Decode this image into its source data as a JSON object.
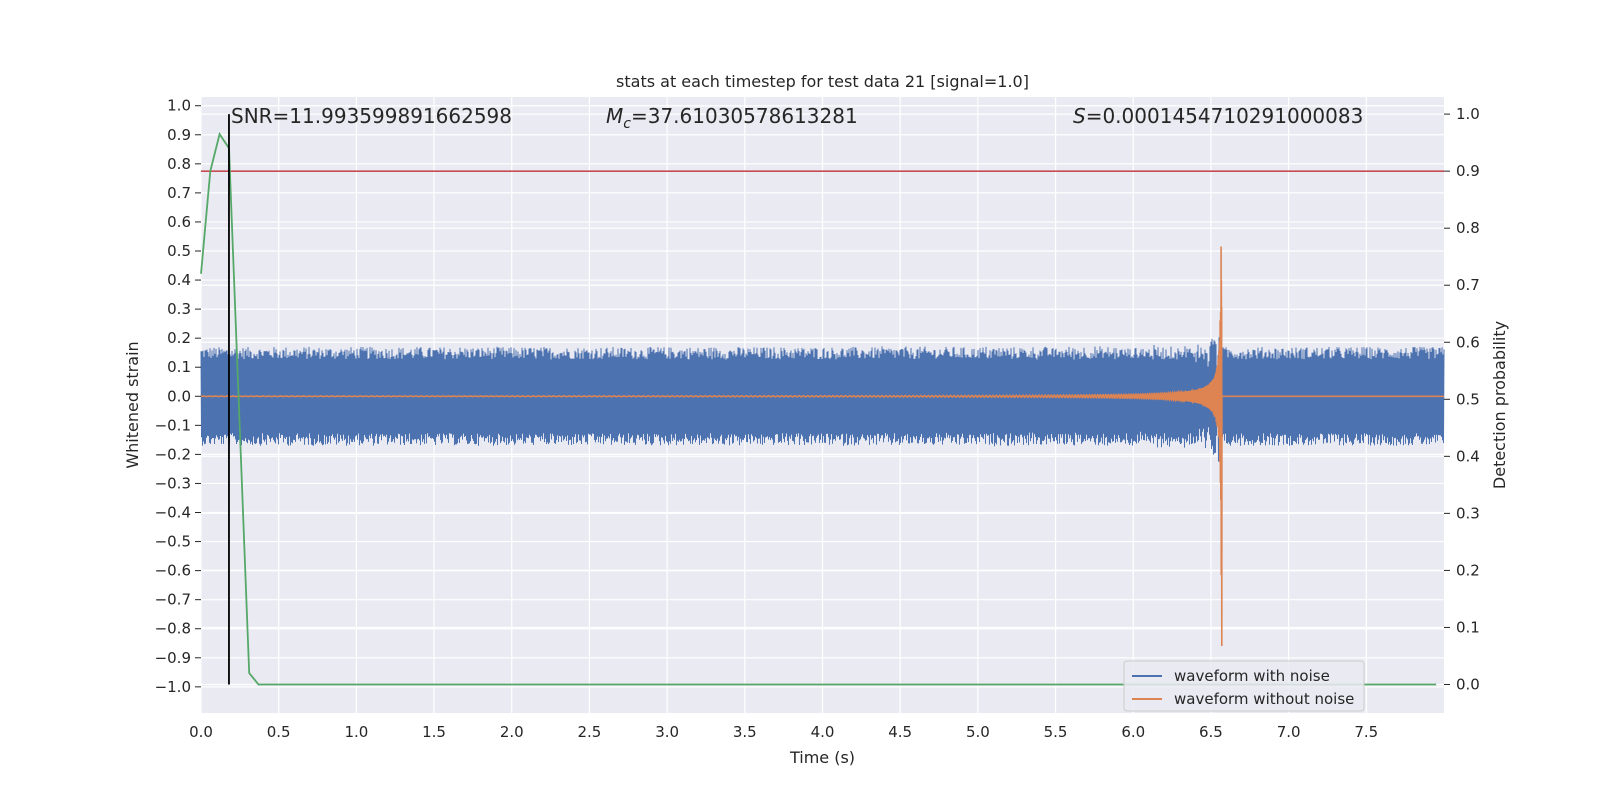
{
  "chart_data": {
    "type": "line",
    "title": "stats at each timestep for test data 21 [signal=1.0]",
    "xlabel": "Time (s)",
    "ylabel_left": "Whitened strain",
    "ylabel_right": "Detection probability",
    "xlim": [
      0.0,
      8.0
    ],
    "ylim_left": [
      -1.09,
      1.03
    ],
    "ylim_right": [
      -0.05,
      1.03
    ],
    "xticks": [
      "0.0",
      "0.5",
      "1.0",
      "1.5",
      "2.0",
      "2.5",
      "3.0",
      "3.5",
      "4.0",
      "4.5",
      "5.0",
      "5.5",
      "6.0",
      "6.5",
      "7.0",
      "7.5"
    ],
    "yticks_left": [
      "1.0",
      "0.9",
      "0.8",
      "0.7",
      "0.6",
      "0.5",
      "0.4",
      "0.3",
      "0.2",
      "0.1",
      "0.0",
      "-0.1",
      "-0.2",
      "-0.3",
      "-0.4",
      "-0.5",
      "-0.6",
      "-0.7",
      "-0.8",
      "-0.9",
      "-1.0"
    ],
    "yticks_right": [
      "1.0",
      "0.9",
      "0.8",
      "0.7",
      "0.6",
      "0.5",
      "0.4",
      "0.3",
      "0.2",
      "0.1",
      "0.0"
    ],
    "grid": true,
    "legend_position": "lower-right",
    "annotations": {
      "snr": "SNR=11.993599891662598",
      "mc": "=37.61030578613281",
      "mc_symbol": "M",
      "mc_sub": "c",
      "s": "=0.0001454710291000083",
      "s_symbol": "S"
    },
    "series": [
      {
        "name": "waveform with noise",
        "color": "#4c72b0",
        "noise_amplitude": 0.17,
        "merger_time": 6.57
      },
      {
        "name": "waveform without noise",
        "color": "#dd8452",
        "merger_time": 6.57,
        "peak_amplitude": 0.93
      },
      {
        "color": "#55a868",
        "axis": "right",
        "x": [
          0.0,
          0.06,
          0.12,
          0.18,
          0.31,
          0.37,
          7.95
        ],
        "y": [
          0.72,
          0.9,
          0.965,
          0.94,
          0.02,
          0.0,
          0.0
        ]
      }
    ],
    "threshold_right": 0.9,
    "threshold_color": "#c44e52",
    "detection_time": 0.18,
    "detection_line_color": "#000000",
    "background_color": "#eaeaf2"
  }
}
